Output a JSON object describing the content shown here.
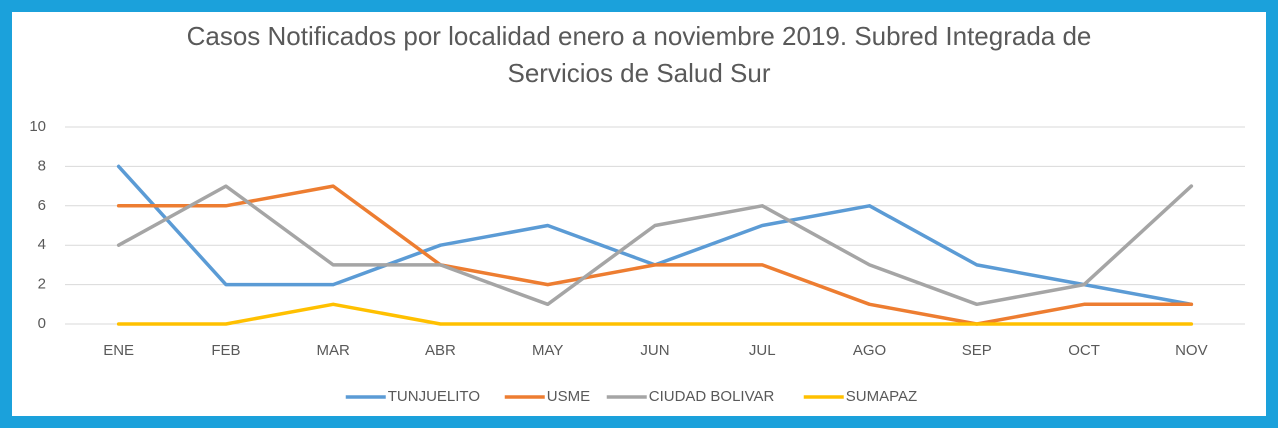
{
  "chart_data": {
    "type": "line",
    "title": "Casos Notificados por  localidad enero a noviembre 2019. Subred Integrada de Servicios de Salud Sur",
    "categories": [
      "ENE",
      "FEB",
      "MAR",
      "ABR",
      "MAY",
      "JUN",
      "JUL",
      "AGO",
      "SEP",
      "OCT",
      "NOV"
    ],
    "series": [
      {
        "name": "TUNJUELITO",
        "color": "#5b9bd5",
        "values": [
          8,
          2,
          2,
          4,
          5,
          3,
          5,
          6,
          3,
          2,
          1
        ]
      },
      {
        "name": "USME",
        "color": "#ed7d31",
        "values": [
          6,
          6,
          7,
          3,
          2,
          3,
          3,
          1,
          0,
          1,
          1
        ]
      },
      {
        "name": "CIUDAD BOLIVAR",
        "color": "#a5a5a5",
        "values": [
          4,
          7,
          3,
          3,
          1,
          5,
          6,
          3,
          1,
          2,
          7
        ]
      },
      {
        "name": "SUMAPAZ",
        "color": "#ffc000",
        "values": [
          0,
          0,
          1,
          0,
          0,
          0,
          0,
          0,
          0,
          0,
          0
        ]
      }
    ],
    "ylim": [
      0,
      10
    ],
    "yticks": [
      0,
      2,
      4,
      6,
      8,
      10
    ],
    "grid": true,
    "legend": "bottom"
  }
}
